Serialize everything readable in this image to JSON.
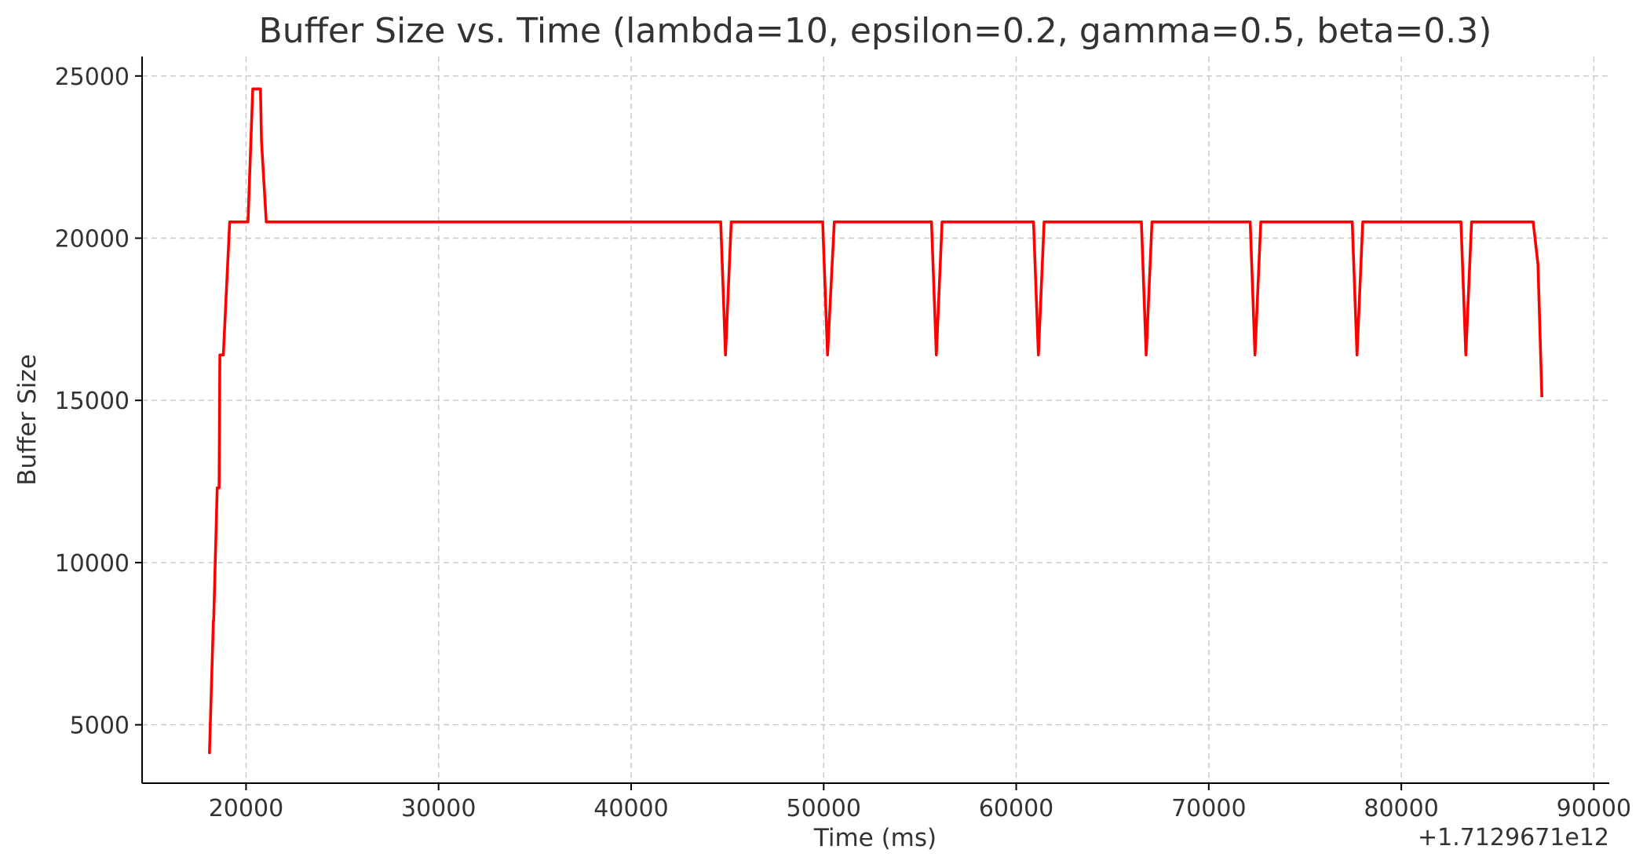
{
  "chart_data": {
    "type": "line",
    "title": "Buffer Size vs. Time (lambda=10, epsilon=0.2, gamma=0.5, beta=0.3)",
    "xlabel": "Time (ms)",
    "ylabel": "Buffer Size",
    "x_offset_label": "+1.7129671e12",
    "xlim": [
      14600,
      90800
    ],
    "ylim": [
      3200,
      25600
    ],
    "x_ticks": [
      20000,
      30000,
      40000,
      50000,
      60000,
      70000,
      80000,
      90000
    ],
    "y_ticks": [
      5000,
      10000,
      15000,
      20000,
      25000
    ],
    "grid": true,
    "series": [
      {
        "color": "#ff0000",
        "x": [
          18100,
          18300,
          18320,
          18500,
          18520,
          18600,
          18640,
          18770,
          18820,
          19150,
          19200,
          20050,
          20100,
          20350,
          20450,
          20750,
          20800,
          21050,
          21150,
          44650,
          44900,
          45200,
          49950,
          50200,
          50550,
          55600,
          55850,
          56150,
          60900,
          61150,
          61450,
          66500,
          66750,
          67050,
          72150,
          72400,
          72700,
          77450,
          77700,
          78000,
          83100,
          83350,
          83650,
          86850,
          87100,
          87300
        ],
        "y": [
          4100,
          8200,
          8200,
          12300,
          12300,
          12300,
          16400,
          16400,
          16400,
          20500,
          20500,
          20500,
          20500,
          24600,
          24600,
          24600,
          23000,
          20500,
          20500,
          20500,
          16400,
          20500,
          20500,
          16400,
          20500,
          20500,
          16400,
          20500,
          20500,
          16400,
          20500,
          20500,
          16400,
          20500,
          20500,
          16400,
          20500,
          20500,
          16400,
          20500,
          20500,
          16400,
          20500,
          20500,
          19200,
          15100
        ]
      }
    ]
  }
}
